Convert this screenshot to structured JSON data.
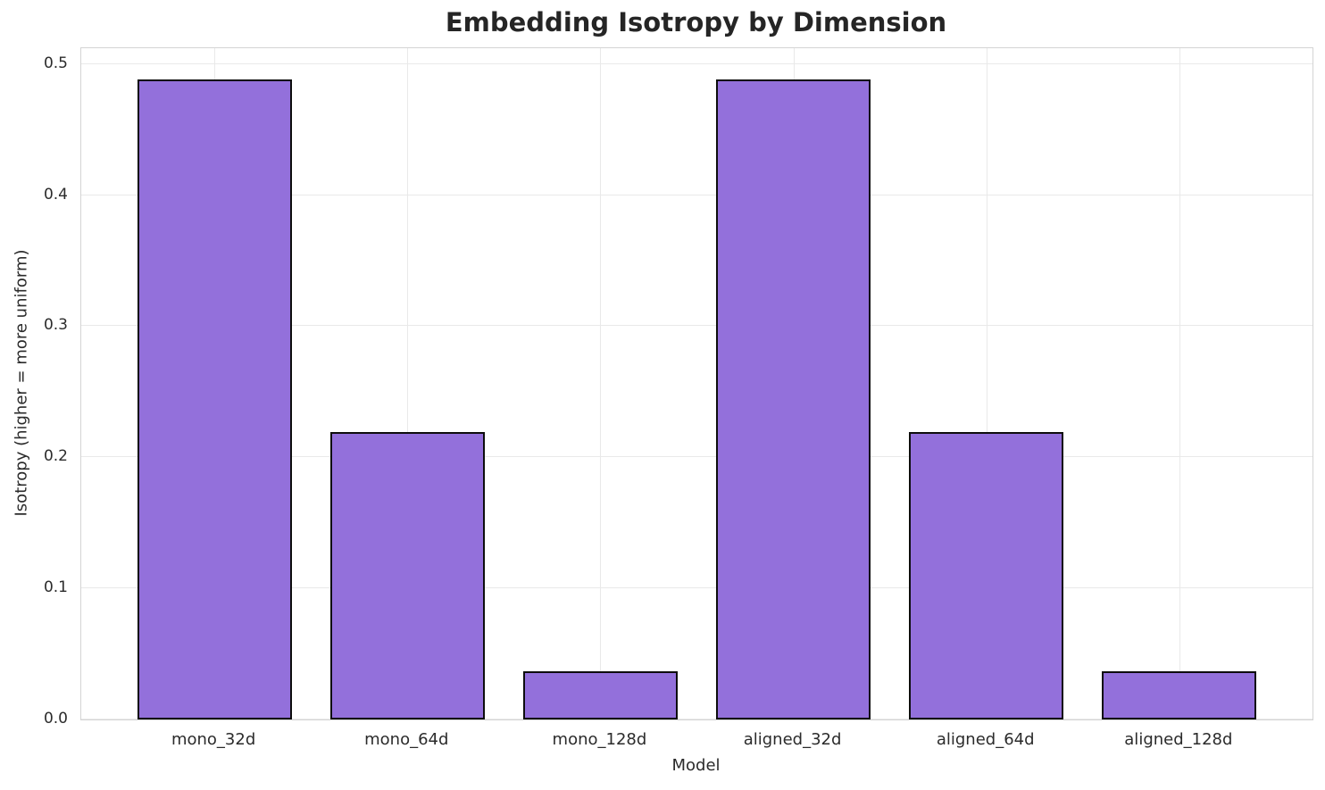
{
  "chart_data": {
    "type": "bar",
    "title": "Embedding Isotropy by Dimension",
    "xlabel": "Model",
    "ylabel": "Isotropy (higher = more uniform)",
    "categories": [
      "mono_32d",
      "mono_64d",
      "mono_128d",
      "aligned_32d",
      "aligned_64d",
      "aligned_128d"
    ],
    "values": [
      0.488,
      0.219,
      0.037,
      0.488,
      0.219,
      0.037
    ],
    "yticks": [
      0.0,
      0.1,
      0.2,
      0.3,
      0.4,
      0.5
    ],
    "ytick_labels": [
      "0.0",
      "0.1",
      "0.2",
      "0.3",
      "0.4",
      "0.5"
    ],
    "ylim": [
      0,
      0.512
    ],
    "bar_width_frac": 0.8,
    "grid": true,
    "legend": null,
    "bar_color": "#9370DB",
    "bar_edge_color": "#0d0d0d",
    "grid_color": "#e9e9e9",
    "spine_color": "#d4d4d4",
    "text_color": "#2b2b2b"
  }
}
